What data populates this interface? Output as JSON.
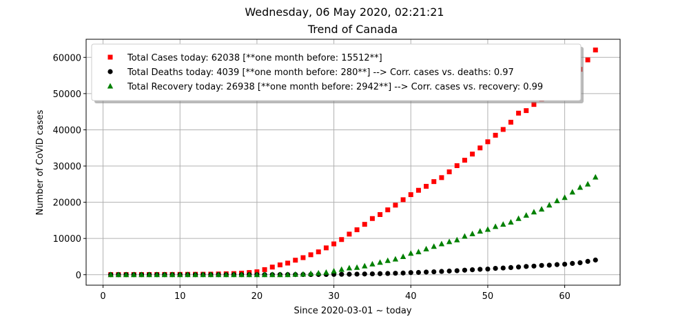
{
  "chart_data": {
    "type": "scatter",
    "suptitle": "Wednesday, 06 May 2020, 02:21:21",
    "title": "Trend of Canada",
    "xlabel": "Since 2020-03-01 ~ today",
    "ylabel": "Number of CoViD cases",
    "xlim": [
      -2.2,
      67.2
    ],
    "ylim": [
      -2900,
      65000
    ],
    "xticks": [
      0,
      10,
      20,
      30,
      40,
      50,
      60
    ],
    "yticks": [
      0,
      10000,
      20000,
      30000,
      40000,
      50000,
      60000
    ],
    "grid": true,
    "legend_position": "upper-left",
    "x": [
      1,
      2,
      3,
      4,
      5,
      6,
      7,
      8,
      9,
      10,
      11,
      12,
      13,
      14,
      15,
      16,
      17,
      18,
      19,
      20,
      21,
      22,
      23,
      24,
      25,
      26,
      27,
      28,
      29,
      30,
      31,
      32,
      33,
      34,
      35,
      36,
      37,
      38,
      39,
      40,
      41,
      42,
      43,
      44,
      45,
      46,
      47,
      48,
      49,
      50,
      51,
      52,
      53,
      54,
      55,
      56,
      57,
      58,
      59,
      60,
      61,
      62,
      63,
      64
    ],
    "series": [
      {
        "name": "Total Cases today: 62038 [**one month before: 15512**]",
        "color": "#ff0000",
        "marker": "square",
        "values": [
          24,
          27,
          30,
          33,
          34,
          39,
          51,
          57,
          62,
          77,
          93,
          103,
          117,
          142,
          198,
          249,
          304,
          415,
          598,
          800,
          1400,
          2100,
          2700,
          3200,
          4000,
          4700,
          5500,
          6300,
          7400,
          8500,
          9700,
          11200,
          12400,
          13900,
          15500,
          16600,
          17900,
          19200,
          20700,
          22100,
          23300,
          24400,
          25700,
          26800,
          28400,
          30100,
          31600,
          33300,
          35000,
          36700,
          38500,
          40100,
          42100,
          44600,
          45300,
          47000,
          48500,
          50100,
          51600,
          53300,
          55000,
          56700,
          59300,
          62038
        ]
      },
      {
        "name": "Total Deaths today: 4039 [**one month before: 280**] --> Corr. cases vs. deaths: 0.97",
        "color": "#000000",
        "marker": "circle",
        "values": [
          0,
          0,
          0,
          0,
          0,
          0,
          0,
          0,
          0,
          1,
          1,
          1,
          1,
          1,
          1,
          1,
          1,
          4,
          5,
          8,
          10,
          13,
          20,
          24,
          27,
          34,
          39,
          55,
          66,
          89,
          107,
          122,
          154,
          188,
          222,
          280,
          330,
          390,
          450,
          570,
          620,
          720,
          800,
          900,
          1000,
          1100,
          1240,
          1360,
          1480,
          1560,
          1740,
          1840,
          1970,
          2110,
          2270,
          2370,
          2560,
          2620,
          2780,
          2890,
          3110,
          3300,
          3680,
          4039
        ]
      },
      {
        "name": "Total Recovery today: 26938 [**one month before: 2942**] --> Corr. cases vs. recovery: 0.99",
        "color": "#008000",
        "marker": "triangle",
        "values": [
          0,
          0,
          0,
          0,
          0,
          0,
          0,
          0,
          0,
          0,
          0,
          0,
          0,
          0,
          0,
          0,
          0,
          0,
          0,
          0,
          0,
          0,
          0,
          0,
          100,
          150,
          300,
          450,
          650,
          1000,
          1450,
          1850,
          2000,
          2400,
          2942,
          3400,
          3900,
          4300,
          5000,
          5900,
          6300,
          7100,
          7800,
          8500,
          9100,
          9600,
          10600,
          11300,
          12000,
          12500,
          13300,
          13900,
          14500,
          15500,
          16400,
          17300,
          18100,
          19200,
          20400,
          21300,
          22800,
          24100,
          25000,
          26938
        ]
      }
    ]
  }
}
